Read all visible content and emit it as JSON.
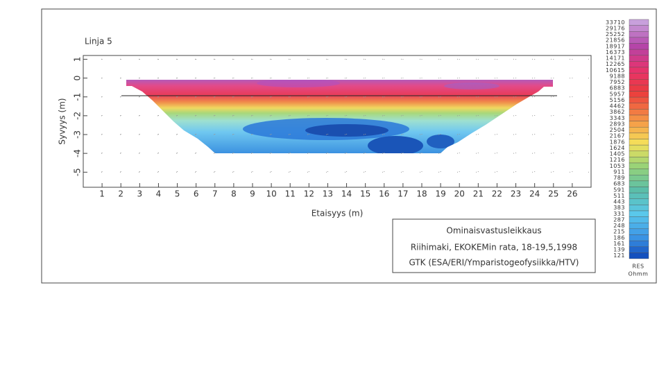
{
  "chart_data": {
    "type": "contour",
    "title": "Linja 5",
    "xlabel": "Etaisyys (m)",
    "ylabel": "Syvyys (m)",
    "xlim": [
      0,
      27
    ],
    "xticks": [
      1,
      2,
      3,
      4,
      5,
      6,
      7,
      8,
      9,
      10,
      11,
      12,
      13,
      14,
      15,
      16,
      17,
      18,
      19,
      20,
      21,
      22,
      23,
      24,
      25,
      26
    ],
    "ylim": [
      -5.8,
      1.2
    ],
    "yticks": [
      1,
      0,
      -1,
      -2,
      -3,
      -4,
      -5
    ],
    "grid": true,
    "colorbar": {
      "label": "RES",
      "unit": "Ohmm",
      "levels": [
        33710,
        29176,
        25252,
        21856,
        18917,
        16373,
        14171,
        12265,
        10615,
        9188,
        7952,
        6883,
        5957,
        5156,
        4462,
        3862,
        3343,
        2893,
        2504,
        2167,
        1876,
        1624,
        1405,
        1216,
        1053,
        911,
        789,
        683,
        591,
        511,
        443,
        383,
        331,
        287,
        248,
        215,
        186,
        161,
        139,
        121
      ]
    },
    "info_box": {
      "heading": "Ominaisvastusleikkaus",
      "line1": "Riihimaki, EKOKEMin rata, 18-19,5,1998",
      "line2": "GTK (ESA/ERI/Ymparistogeofysiikka/HTV)"
    }
  }
}
